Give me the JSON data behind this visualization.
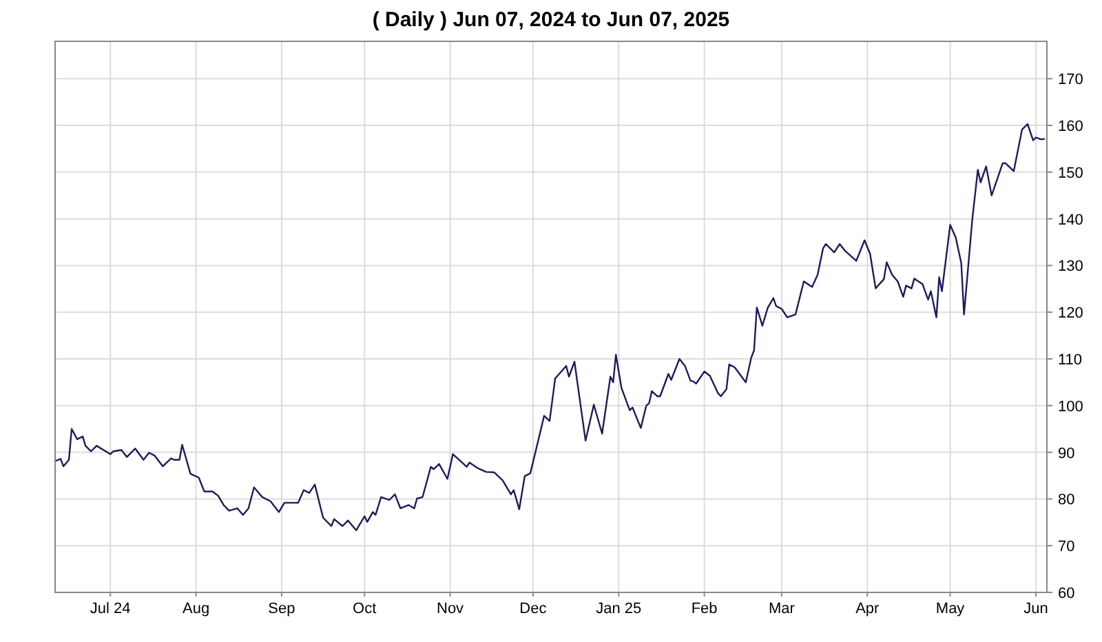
{
  "chart_data": {
    "type": "line",
    "title": "( Daily ) Jun 07, 2024 to Jun 07, 2025",
    "xlim": [
      "2024-06-11",
      "2025-06-05"
    ],
    "xticks": [
      {
        "value": "2024-07-01",
        "label": "Jul 24"
      },
      {
        "value": "2024-08-01",
        "label": "Aug"
      },
      {
        "value": "2024-09-01",
        "label": "Sep"
      },
      {
        "value": "2024-10-01",
        "label": "Oct"
      },
      {
        "value": "2024-11-01",
        "label": "Nov"
      },
      {
        "value": "2024-12-01",
        "label": "Dec"
      },
      {
        "value": "2025-01-01",
        "label": "Jan 25"
      },
      {
        "value": "2025-02-01",
        "label": "Feb"
      },
      {
        "value": "2025-03-01",
        "label": "Mar"
      },
      {
        "value": "2025-04-01",
        "label": "Apr"
      },
      {
        "value": "2025-05-01",
        "label": "May"
      },
      {
        "value": "2025-06-01",
        "label": "Jun"
      }
    ],
    "ylim": [
      60,
      178
    ],
    "yticks": [
      60,
      70,
      80,
      90,
      100,
      110,
      120,
      130,
      140,
      150,
      160,
      170
    ],
    "grid": true,
    "marker": "none",
    "line_style": "solid",
    "x": [
      "2024-06-11",
      "2024-06-13",
      "2024-06-14",
      "2024-06-16",
      "2024-06-17",
      "2024-06-19",
      "2024-06-21",
      "2024-06-22",
      "2024-06-24",
      "2024-06-26",
      "2024-07-01",
      "2024-07-02",
      "2024-07-05",
      "2024-07-07",
      "2024-07-10",
      "2024-07-13",
      "2024-07-15",
      "2024-07-17",
      "2024-07-20",
      "2024-07-23",
      "2024-07-24",
      "2024-07-26",
      "2024-07-27",
      "2024-07-30",
      "2024-08-02",
      "2024-08-04",
      "2024-08-07",
      "2024-08-09",
      "2024-08-11",
      "2024-08-13",
      "2024-08-16",
      "2024-08-18",
      "2024-08-20",
      "2024-08-22",
      "2024-08-25",
      "2024-08-28",
      "2024-08-31",
      "2024-09-02",
      "2024-09-07",
      "2024-09-09",
      "2024-09-11",
      "2024-09-13",
      "2024-09-16",
      "2024-09-19",
      "2024-09-20",
      "2024-09-23",
      "2024-09-25",
      "2024-09-28",
      "2024-10-01",
      "2024-10-02",
      "2024-10-04",
      "2024-10-05",
      "2024-10-07",
      "2024-10-10",
      "2024-10-12",
      "2024-10-14",
      "2024-10-17",
      "2024-10-19",
      "2024-10-20",
      "2024-10-22",
      "2024-10-25",
      "2024-10-26",
      "2024-10-28",
      "2024-10-31",
      "2024-11-02",
      "2024-11-07",
      "2024-11-08",
      "2024-11-11",
      "2024-11-14",
      "2024-11-17",
      "2024-11-20",
      "2024-11-23",
      "2024-11-24",
      "2024-11-26",
      "2024-11-28",
      "2024-11-30",
      "2024-12-03",
      "2024-12-05",
      "2024-12-07",
      "2024-12-09",
      "2024-12-13",
      "2024-12-14",
      "2024-12-16",
      "2024-12-20",
      "2024-12-23",
      "2024-12-26",
      "2024-12-29",
      "2024-12-30",
      "2024-12-31",
      "2025-01-02",
      "2025-01-05",
      "2025-01-06",
      "2025-01-09",
      "2025-01-11",
      "2025-01-12",
      "2025-01-13",
      "2025-01-15",
      "2025-01-16",
      "2025-01-19",
      "2025-01-20",
      "2025-01-23",
      "2025-01-25",
      "2025-01-27",
      "2025-01-28",
      "2025-01-29",
      "2025-02-01",
      "2025-02-03",
      "2025-02-06",
      "2025-02-07",
      "2025-02-09",
      "2025-02-10",
      "2025-02-12",
      "2025-02-15",
      "2025-02-16",
      "2025-02-18",
      "2025-02-19",
      "2025-02-20",
      "2025-02-22",
      "2025-02-24",
      "2025-02-26",
      "2025-02-27",
      "2025-03-01",
      "2025-03-03",
      "2025-03-06",
      "2025-03-09",
      "2025-03-12",
      "2025-03-14",
      "2025-03-16",
      "2025-03-17",
      "2025-03-20",
      "2025-03-22",
      "2025-03-24",
      "2025-03-28",
      "2025-03-31",
      "2025-04-02",
      "2025-04-04",
      "2025-04-07",
      "2025-04-08",
      "2025-04-10",
      "2025-04-12",
      "2025-04-14",
      "2025-04-15",
      "2025-04-17",
      "2025-04-18",
      "2025-04-21",
      "2025-04-23",
      "2025-04-24",
      "2025-04-26",
      "2025-04-27",
      "2025-04-28",
      "2025-05-01",
      "2025-05-03",
      "2025-05-05",
      "2025-05-06",
      "2025-05-09",
      "2025-05-11",
      "2025-05-12",
      "2025-05-14",
      "2025-05-16",
      "2025-05-20",
      "2025-05-21",
      "2025-05-24",
      "2025-05-27",
      "2025-05-29",
      "2025-05-31",
      "2025-06-01",
      "2025-06-03",
      "2025-06-04"
    ],
    "series": [
      {
        "color": "#1c1c5a",
        "values": [
          88.1,
          88.6,
          87,
          88.4,
          95,
          92.8,
          93.4,
          91.4,
          90.2,
          91.4,
          89.6,
          90.2,
          90.5,
          89,
          90.8,
          88.4,
          89.9,
          89.3,
          87,
          88.7,
          88.4,
          88.4,
          91.6,
          85.4,
          84.6,
          81.6,
          81.6,
          80.7,
          78.7,
          77.5,
          78,
          76.6,
          78,
          82.5,
          80.4,
          79.5,
          77.2,
          79.2,
          79.2,
          81.9,
          81.3,
          83.1,
          76,
          74.2,
          75.7,
          74.2,
          75.4,
          73.3,
          76.3,
          75.1,
          77.2,
          76.6,
          80.4,
          79.8,
          81,
          78,
          78.7,
          78,
          80.1,
          80.4,
          86.9,
          86.4,
          87.5,
          84.3,
          89.6,
          86.9,
          87.8,
          86.6,
          85.8,
          85.7,
          84,
          81,
          81.9,
          77.8,
          84.9,
          85.5,
          92.8,
          97.8,
          96.7,
          105.8,
          108.5,
          106.2,
          109.4,
          92.5,
          100.2,
          94,
          106.2,
          105,
          110.9,
          103.8,
          99,
          99.6,
          95.2,
          100,
          100.5,
          103.1,
          102,
          102,
          106.8,
          105.5,
          110,
          108.5,
          105.3,
          105.2,
          104.7,
          107.3,
          106.4,
          102.6,
          102,
          103.5,
          108.8,
          108.2,
          105.8,
          105,
          110.3,
          111.8,
          121,
          117.1,
          121,
          123,
          121.3,
          120.7,
          118.9,
          119.5,
          126.6,
          125.4,
          128,
          133.7,
          134.6,
          132.8,
          134.6,
          133.1,
          131,
          135.4,
          132.5,
          125.1,
          127.1,
          130.7,
          128,
          126.6,
          123.3,
          125.7,
          125.1,
          127.2,
          126,
          122.7,
          124.5,
          118.9,
          127.5,
          124.5,
          138.7,
          136,
          130.5,
          119.5,
          139.9,
          150.5,
          147.8,
          151.2,
          145,
          151.9,
          151.9,
          150.2,
          159.1,
          160.3,
          156.8,
          157.4,
          157,
          157.1
        ]
      }
    ]
  }
}
